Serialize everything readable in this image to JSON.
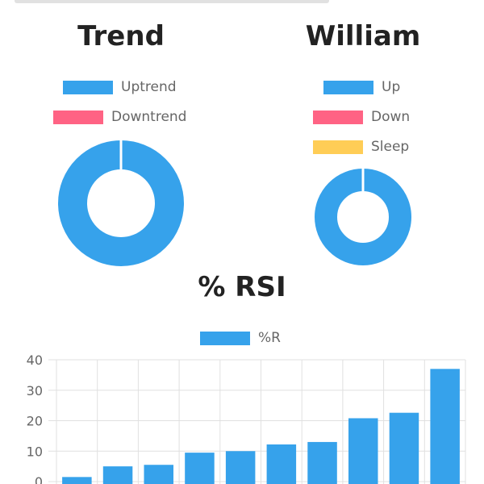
{
  "colors": {
    "blue": "#36a2eb",
    "pink": "#ff6384",
    "yellow": "#ffcd56",
    "grid": "#e0e0e0",
    "text": "#666666",
    "title": "#222222"
  },
  "chart_data": [
    {
      "type": "pie",
      "variant": "doughnut",
      "title": "Trend",
      "legend": "top",
      "labels": [
        "Uptrend",
        "Downtrend"
      ],
      "values": [
        100,
        0
      ],
      "colors": [
        "#36a2eb",
        "#ff6384"
      ]
    },
    {
      "type": "pie",
      "variant": "doughnut",
      "title": "William",
      "legend": "top",
      "labels": [
        "Up",
        "Down",
        "Sleep"
      ],
      "values": [
        100,
        0,
        0
      ],
      "colors": [
        "#36a2eb",
        "#ff6384",
        "#ffcd56"
      ]
    },
    {
      "type": "bar",
      "title": "% RSI",
      "legend": "top",
      "series": [
        {
          "name": "%R",
          "color": "#36a2eb",
          "values": [
            1.5,
            5,
            5.5,
            9.5,
            10,
            12.2,
            13,
            20.8,
            22.6,
            37
          ]
        }
      ],
      "ylim": [
        0,
        40
      ],
      "yticks": [
        "0",
        "10",
        "20",
        "30",
        "40"
      ],
      "grid": true
    }
  ]
}
